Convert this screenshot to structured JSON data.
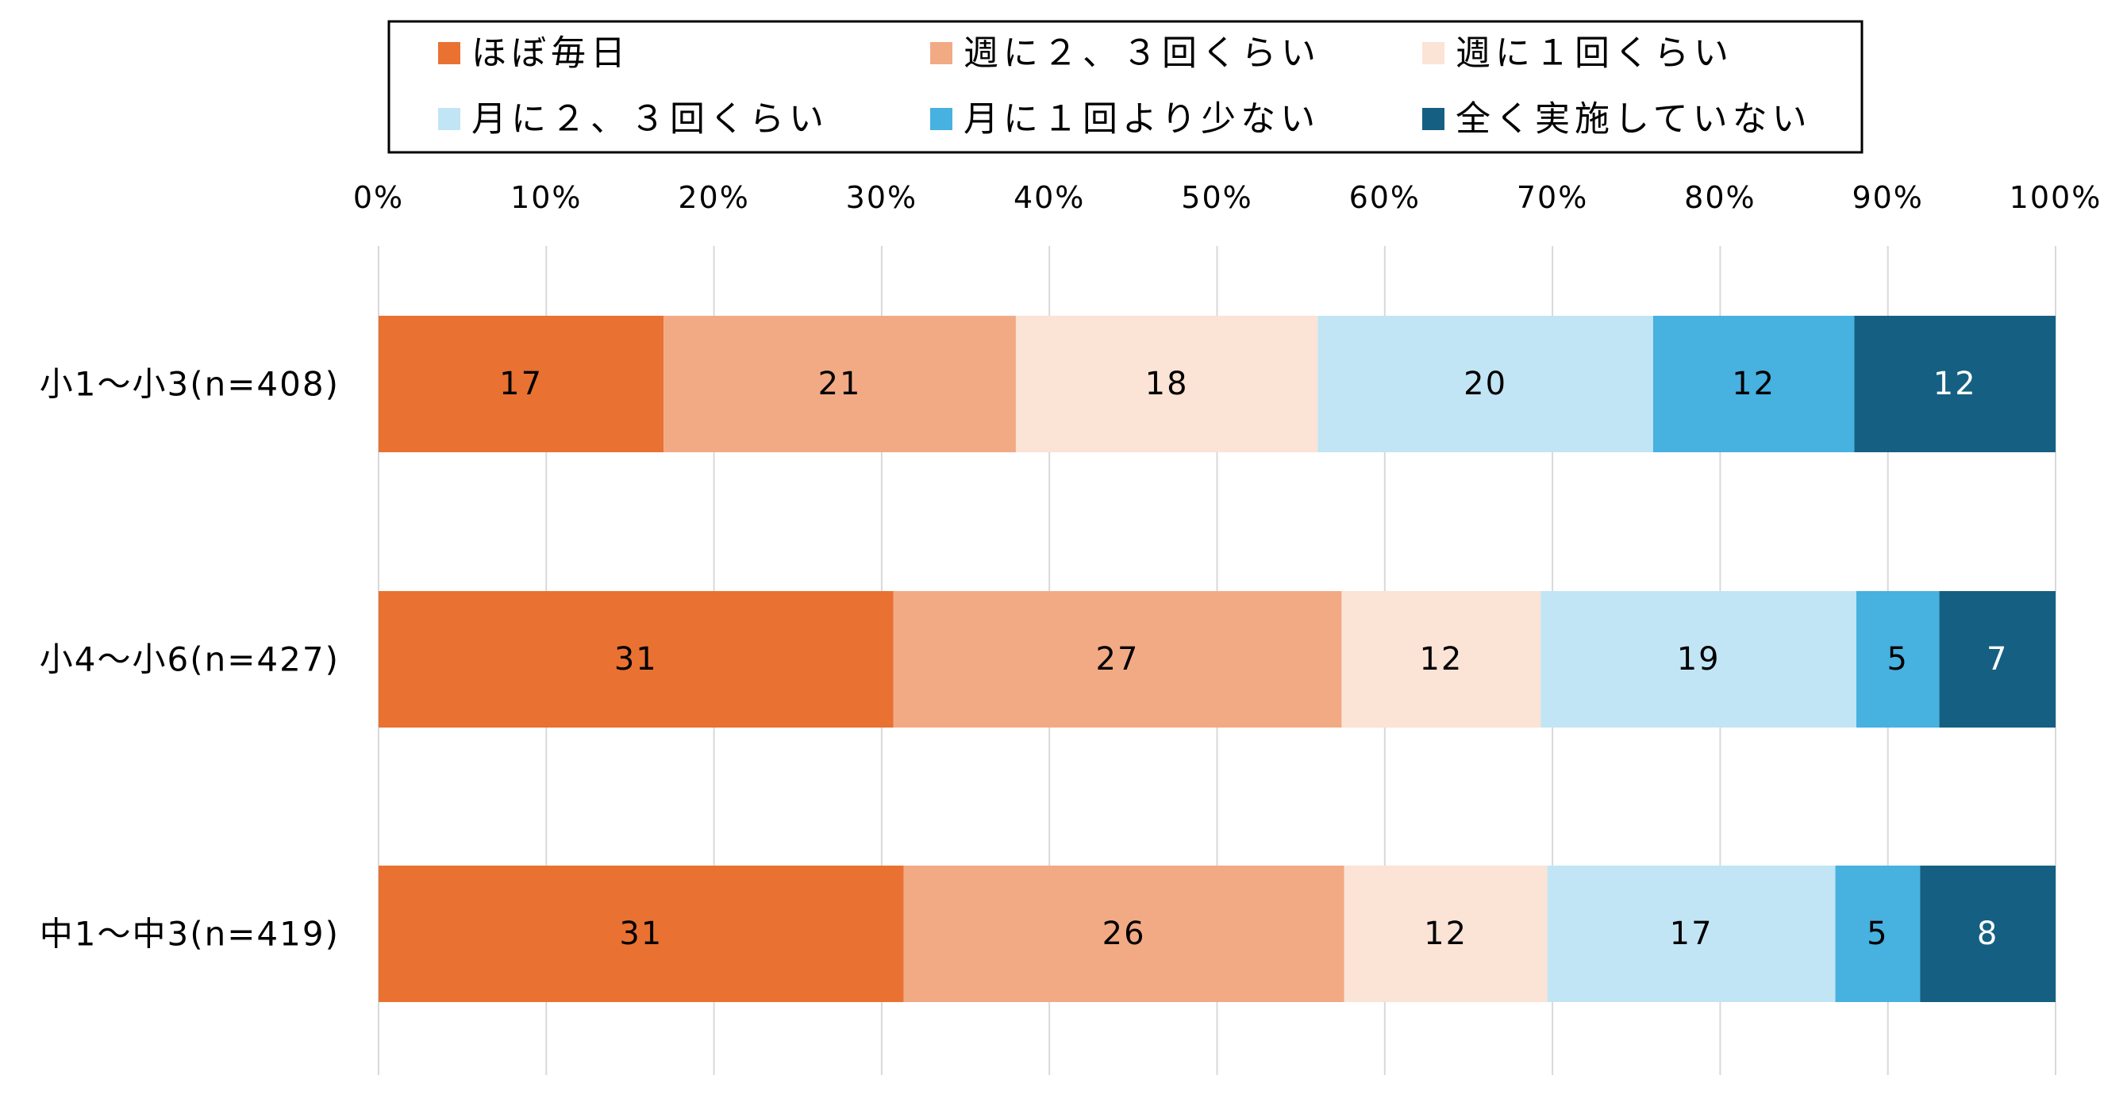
{
  "chart_data": {
    "type": "bar",
    "orientation": "horizontal",
    "stacked": true,
    "title": "",
    "xlabel": "",
    "ylabel": "",
    "xlim": [
      0,
      100
    ],
    "ticks": [
      "0%",
      "10%",
      "20%",
      "30%",
      "40%",
      "50%",
      "60%",
      "70%",
      "80%",
      "90%",
      "100%"
    ],
    "tick_values": [
      0,
      10,
      20,
      30,
      40,
      50,
      60,
      70,
      80,
      90,
      100
    ],
    "grid": true,
    "legend_position": "top",
    "categories": [
      "小1～小3(n=408)",
      "小4～小6(n=427)",
      "中1～中3(n=419)"
    ],
    "series": [
      {
        "name": "ほぼ毎日",
        "color": "#E97132",
        "label_color": "#000000",
        "values": [
          17,
          31,
          31
        ],
        "labels": [
          "17",
          "31",
          "31"
        ]
      },
      {
        "name": "週に２、３回くらい",
        "color": "#F2AA84",
        "label_color": "#000000",
        "values": [
          21,
          27,
          26
        ],
        "labels": [
          "21",
          "27",
          "26"
        ]
      },
      {
        "name": "週に１回くらい",
        "color": "#FBE3D6",
        "label_color": "#000000",
        "values": [
          18,
          12,
          12
        ],
        "labels": [
          "18",
          "12",
          "12"
        ]
      },
      {
        "name": "月に２、３回くらい",
        "color": "#C1E5F5",
        "label_color": "#000000",
        "values": [
          20,
          19,
          17
        ],
        "labels": [
          "20",
          "19",
          "17"
        ]
      },
      {
        "name": "月に１回より少ない",
        "color": "#47B1E0",
        "label_color": "#000000",
        "values": [
          12,
          5,
          5
        ],
        "labels": [
          "12",
          "5",
          "5"
        ]
      },
      {
        "name": "全く実施していない",
        "color": "#156082",
        "label_color": "#ffffff",
        "values": [
          12,
          7,
          8
        ],
        "labels": [
          "12",
          "7",
          "8"
        ]
      }
    ]
  }
}
